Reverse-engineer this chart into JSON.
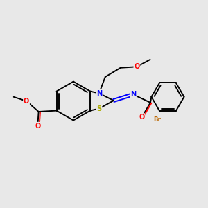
{
  "bg_color": "#e8e8e8",
  "bond_color": "#000000",
  "bond_lw": 1.4,
  "atom_colors": {
    "N": "#0000ff",
    "S": "#aaaa00",
    "O": "#ff0000",
    "Br": "#bb6600",
    "C": "#000000"
  },
  "font_size": 7.0,
  "fig_size": [
    3.0,
    3.0
  ],
  "dpi": 100
}
